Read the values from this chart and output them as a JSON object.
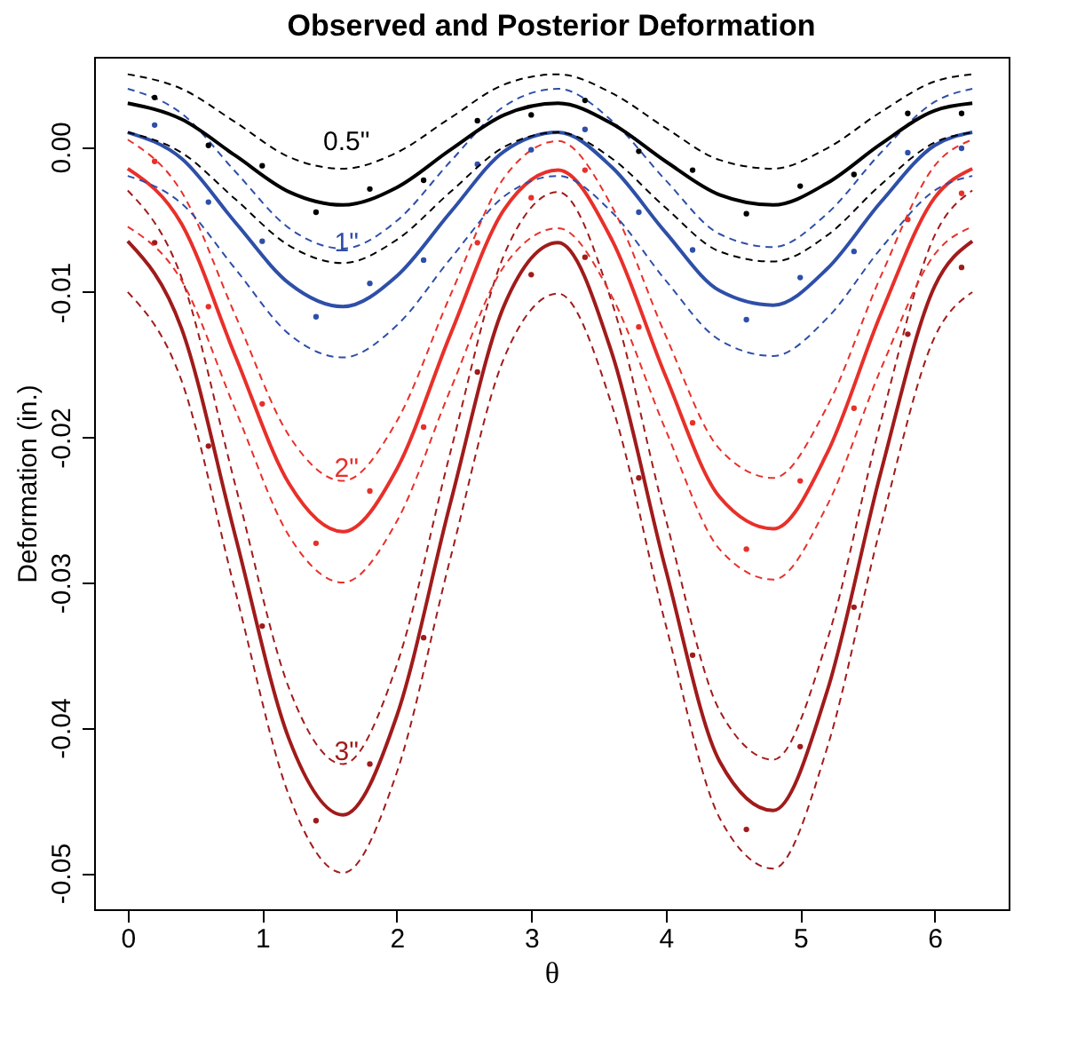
{
  "chart_data": {
    "type": "line",
    "title": "Observed and Posterior Deformation",
    "xlabel": "θ",
    "ylabel": "Deformation (in.)",
    "x": [
      0,
      0.4,
      0.8,
      1.2,
      1.6,
      2.0,
      2.4,
      2.8,
      3.2,
      3.6,
      4.0,
      4.4,
      4.8,
      5.2,
      5.6,
      6.0,
      6.28
    ],
    "xlim": [
      -0.25,
      6.55
    ],
    "xticks": [
      0,
      1,
      2,
      3,
      4,
      5,
      6
    ],
    "ylim": [
      -0.0525,
      0.0062
    ],
    "yticks": [
      {
        "value": 0,
        "label": "0.00"
      },
      {
        "value": -0.01,
        "label": "-0.01"
      },
      {
        "value": -0.02,
        "label": "-0.02"
      },
      {
        "value": -0.03,
        "label": "-0.03"
      },
      {
        "value": -0.04,
        "label": "-0.04"
      },
      {
        "value": -0.05,
        "label": "-0.05"
      }
    ],
    "grid": false,
    "series": [
      {
        "color": "#a01b1b",
        "line_style": "dashed",
        "values": [
          -0.003,
          -0.009,
          -0.0233,
          -0.0373,
          -0.0425,
          -0.0357,
          -0.021,
          -0.0074,
          -0.0031,
          -0.0107,
          -0.0256,
          -0.0388,
          -0.0422,
          -0.034,
          -0.0189,
          -0.0061,
          -0.003
        ]
      },
      {
        "color": "#a01b1b",
        "line_style": "dashed",
        "values": [
          -0.01,
          -0.0161,
          -0.0306,
          -0.0447,
          -0.05,
          -0.0431,
          -0.0283,
          -0.0145,
          -0.0101,
          -0.0178,
          -0.0329,
          -0.0462,
          -0.0497,
          -0.0414,
          -0.0261,
          -0.0131,
          -0.01
        ]
      },
      {
        "name": "3\"",
        "color": "#a01b1b",
        "line_style": "solid",
        "values": [
          -0.0065,
          -0.0125,
          -0.0268,
          -0.0408,
          -0.046,
          -0.0392,
          -0.0245,
          -0.0109,
          -0.0066,
          -0.0142,
          -0.0291,
          -0.0423,
          -0.0457,
          -0.0375,
          -0.0224,
          -0.0096,
          -0.0065
        ]
      },
      {
        "type": "scatter",
        "color": "#a01b1b",
        "x": [
          0.2,
          0.6,
          1.0,
          1.4,
          1.8,
          2.2,
          2.6,
          3.0,
          3.4,
          3.8,
          4.2,
          4.6,
          5.0,
          5.4,
          5.8,
          6.2
        ],
        "values": [
          -0.0066,
          -0.0206,
          -0.033,
          -0.0464,
          -0.0425,
          -0.0338,
          -0.0155,
          -0.0088,
          -0.0076,
          -0.0228,
          -0.035,
          -0.047,
          -0.0413,
          -0.0317,
          -0.0129,
          -0.0083
        ]
      },
      {
        "color": "#e8302a",
        "line_style": "dashed",
        "values": [
          0.0005,
          -0.0031,
          -0.0116,
          -0.0199,
          -0.023,
          -0.0189,
          -0.0102,
          -0.0021,
          0.0004,
          -0.0041,
          -0.013,
          -0.0208,
          -0.0228,
          -0.0179,
          -0.0089,
          -0.0013,
          0.0005
        ]
      },
      {
        "color": "#e8302a",
        "line_style": "dashed",
        "values": [
          -0.0055,
          -0.0092,
          -0.0181,
          -0.0268,
          -0.03,
          -0.0258,
          -0.0167,
          -0.0082,
          -0.0056,
          -0.0103,
          -0.0195,
          -0.0277,
          -0.0298,
          -0.0247,
          -0.0153,
          -0.0074,
          -0.0055
        ]
      },
      {
        "name": "2\"",
        "color": "#e8302a",
        "line_style": "solid",
        "values": [
          -0.0015,
          -0.0053,
          -0.0144,
          -0.0232,
          -0.0265,
          -0.0222,
          -0.0129,
          -0.0043,
          -0.0016,
          -0.0064,
          -0.0158,
          -0.0241,
          -0.0263,
          -0.0211,
          -0.0115,
          -0.0035,
          -0.0015
        ]
      },
      {
        "type": "scatter",
        "color": "#e8302a",
        "x": [
          0.2,
          0.6,
          1.0,
          1.4,
          1.8,
          2.2,
          2.6,
          3.0,
          3.4,
          3.8,
          4.2,
          4.6,
          5.0,
          5.4,
          5.8,
          6.2
        ],
        "values": [
          -0.001,
          -0.011,
          -0.0177,
          -0.0273,
          -0.0237,
          -0.0193,
          -0.0066,
          -0.0035,
          -0.0016,
          -0.0124,
          -0.019,
          -0.0277,
          -0.023,
          -0.018,
          -0.005,
          -0.0032
        ]
      },
      {
        "color": "#2e4fa8",
        "line_style": "dashed",
        "values": [
          0.004,
          0.0023,
          -0.0017,
          -0.0056,
          -0.007,
          -0.0051,
          -0.001,
          0.0028,
          0.004,
          0.0018,
          -0.0023,
          -0.006,
          -0.0069,
          -0.0046,
          -0.0004,
          0.0031,
          0.004
        ]
      },
      {
        "color": "#2e4fa8",
        "line_style": "dashed",
        "values": [
          -0.002,
          -0.0039,
          -0.0084,
          -0.0129,
          -0.0145,
          -0.0123,
          -0.0077,
          -0.0034,
          -0.002,
          -0.0045,
          -0.0092,
          -0.0133,
          -0.0144,
          -0.0118,
          -0.007,
          -0.003,
          -0.002
        ]
      },
      {
        "name": "1\"",
        "color": "#2e4fa8",
        "line_style": "solid",
        "values": [
          0.001,
          -0.0008,
          -0.0052,
          -0.0094,
          -0.011,
          -0.0089,
          -0.0045,
          -0.0003,
          0.001,
          -0.0014,
          -0.0059,
          -0.0099,
          -0.0109,
          -0.0084,
          -0.0038,
          0.0001,
          0.001
        ]
      },
      {
        "type": "scatter",
        "color": "#2e4fa8",
        "x": [
          0.2,
          0.6,
          1.0,
          1.4,
          1.8,
          2.2,
          2.6,
          3.0,
          3.4,
          3.8,
          4.2,
          4.6,
          5.0,
          5.4,
          5.8,
          6.2
        ],
        "values": [
          0.0015,
          -0.0038,
          -0.0065,
          -0.0117,
          -0.0094,
          -0.0078,
          -0.0012,
          -0.0002,
          0.0012,
          -0.0045,
          -0.0071,
          -0.0119,
          -0.009,
          -0.0072,
          -0.0004,
          -0.0001
        ]
      },
      {
        "color": "#000000",
        "line_style": "dashed",
        "values": [
          0.005,
          0.004,
          0.0017,
          -0.0007,
          -0.0015,
          -0.0004,
          0.002,
          0.0043,
          0.005,
          0.0037,
          0.0013,
          -0.0009,
          -0.0015,
          -0.0001,
          0.0024,
          0.0045,
          0.005
        ]
      },
      {
        "color": "#000000",
        "line_style": "dashed",
        "values": [
          0.001,
          -0.0004,
          -0.0036,
          -0.0068,
          -0.008,
          -0.0064,
          -0.0031,
          0,
          0.001,
          -0.0008,
          -0.0042,
          -0.0072,
          -0.0079,
          -0.0061,
          -0.0026,
          0.0003,
          0.001
        ]
      },
      {
        "name": "0.5\"",
        "color": "#000000",
        "line_style": "solid",
        "values": [
          0.003,
          0.0019,
          -0.0006,
          -0.0031,
          -0.004,
          -0.0028,
          -0.0002,
          0.0022,
          0.003,
          0.0016,
          -0.001,
          -0.0033,
          -0.004,
          -0.0025,
          0.0002,
          0.0025,
          0.003
        ]
      },
      {
        "type": "scatter",
        "color": "#000000",
        "x": [
          0.2,
          0.6,
          1.0,
          1.4,
          1.8,
          2.2,
          2.6,
          3.0,
          3.4,
          3.8,
          4.2,
          4.6,
          5.0,
          5.4,
          5.8,
          6.2
        ],
        "values": [
          0.0034,
          0.0001,
          -0.0013,
          -0.0045,
          -0.0029,
          -0.0023,
          0.0018,
          0.0022,
          0.0032,
          -0.0003,
          -0.0016,
          -0.0046,
          -0.0027,
          -0.0019,
          0.0023,
          0.0023
        ]
      }
    ]
  }
}
